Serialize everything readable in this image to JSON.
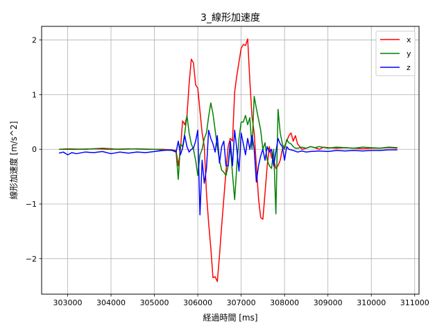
{
  "chart_data": {
    "type": "line",
    "title": "3_線形加速度",
    "xlabel": "経過時間 [ms]",
    "ylabel": "線形加速度 [m/s^2]",
    "xlim": [
      302400,
      311100
    ],
    "ylim": [
      -2.65,
      2.25
    ],
    "xticks": [
      303000,
      304000,
      305000,
      306000,
      307000,
      308000,
      309000,
      310000,
      311000
    ],
    "yticks": [
      -2,
      -1,
      0,
      1,
      2
    ],
    "grid": true,
    "legend": "top-right",
    "series": [
      {
        "name": "x",
        "color": "#ff0000",
        "points": [
          [
            302800,
            0.0
          ],
          [
            303200,
            0.0
          ],
          [
            303600,
            0.01
          ],
          [
            304000,
            0.0
          ],
          [
            304400,
            0.01
          ],
          [
            304800,
            0.0
          ],
          [
            305200,
            0.0
          ],
          [
            305500,
            -0.02
          ],
          [
            305550,
            -0.3
          ],
          [
            305600,
            0.0
          ],
          [
            305650,
            0.52
          ],
          [
            305700,
            0.45
          ],
          [
            305750,
            0.6
          ],
          [
            305800,
            1.2
          ],
          [
            305850,
            1.65
          ],
          [
            305900,
            1.58
          ],
          [
            305950,
            1.18
          ],
          [
            306000,
            1.12
          ],
          [
            306050,
            0.7
          ],
          [
            306100,
            0.3
          ],
          [
            306150,
            0.05
          ],
          [
            306200,
            -0.8
          ],
          [
            306250,
            -1.35
          ],
          [
            306300,
            -1.8
          ],
          [
            306350,
            -2.35
          ],
          [
            306400,
            -2.33
          ],
          [
            306450,
            -2.42
          ],
          [
            306500,
            -1.95
          ],
          [
            306550,
            -1.4
          ],
          [
            306600,
            -0.9
          ],
          [
            306650,
            -0.4
          ],
          [
            306700,
            0.05
          ],
          [
            306750,
            0.2
          ],
          [
            306800,
            0.15
          ],
          [
            306850,
            1.05
          ],
          [
            306900,
            1.35
          ],
          [
            306950,
            1.6
          ],
          [
            307000,
            1.85
          ],
          [
            307050,
            1.92
          ],
          [
            307100,
            1.9
          ],
          [
            307150,
            2.02
          ],
          [
            307200,
            1.25
          ],
          [
            307250,
            0.6
          ],
          [
            307300,
            0.3
          ],
          [
            307350,
            -0.3
          ],
          [
            307400,
            -0.9
          ],
          [
            307450,
            -1.25
          ],
          [
            307500,
            -1.28
          ],
          [
            307550,
            -0.8
          ],
          [
            307600,
            -0.3
          ],
          [
            307650,
            0.05
          ],
          [
            307700,
            -0.15
          ],
          [
            307750,
            -0.2
          ],
          [
            307800,
            -0.35
          ],
          [
            307850,
            -0.3
          ],
          [
            307900,
            -0.2
          ],
          [
            307950,
            0.0
          ],
          [
            308000,
            0.05
          ],
          [
            308050,
            0.15
          ],
          [
            308100,
            0.25
          ],
          [
            308150,
            0.3
          ],
          [
            308200,
            0.15
          ],
          [
            308250,
            0.25
          ],
          [
            308300,
            0.1
          ],
          [
            308350,
            0.05
          ],
          [
            308400,
            0.0
          ],
          [
            308500,
            0.02
          ],
          [
            308600,
            0.05
          ],
          [
            308700,
            0.03
          ],
          [
            308800,
            0.0
          ],
          [
            308900,
            0.04
          ],
          [
            309000,
            0.03
          ],
          [
            309200,
            0.02
          ],
          [
            309400,
            0.03
          ],
          [
            309600,
            0.02
          ],
          [
            309800,
            0.01
          ],
          [
            310000,
            0.02
          ],
          [
            310200,
            0.02
          ],
          [
            310400,
            0.03
          ],
          [
            310600,
            0.02
          ]
        ]
      },
      {
        "name": "y",
        "color": "#008000",
        "points": [
          [
            302800,
            0.0
          ],
          [
            303000,
            0.01
          ],
          [
            303400,
            0.0
          ],
          [
            303800,
            0.02
          ],
          [
            304200,
            0.0
          ],
          [
            304600,
            0.01
          ],
          [
            305000,
            0.0
          ],
          [
            305400,
            -0.02
          ],
          [
            305500,
            -0.05
          ],
          [
            305550,
            -0.55
          ],
          [
            305600,
            0.1
          ],
          [
            305650,
            0.05
          ],
          [
            305700,
            0.3
          ],
          [
            305750,
            0.62
          ],
          [
            305800,
            0.3
          ],
          [
            305850,
            0.1
          ],
          [
            305900,
            0.0
          ],
          [
            305950,
            -0.2
          ],
          [
            306000,
            -0.48
          ],
          [
            306050,
            -0.1
          ],
          [
            306100,
            0.0
          ],
          [
            306150,
            0.2
          ],
          [
            306200,
            0.3
          ],
          [
            306250,
            0.6
          ],
          [
            306300,
            0.85
          ],
          [
            306350,
            0.65
          ],
          [
            306400,
            0.35
          ],
          [
            306450,
            0.05
          ],
          [
            306500,
            -0.2
          ],
          [
            306550,
            -0.38
          ],
          [
            306600,
            -0.42
          ],
          [
            306650,
            -0.48
          ],
          [
            306700,
            -0.3
          ],
          [
            306750,
            0.05
          ],
          [
            306800,
            -0.45
          ],
          [
            306850,
            -0.92
          ],
          [
            306900,
            -0.3
          ],
          [
            306950,
            0.2
          ],
          [
            307000,
            0.5
          ],
          [
            307050,
            0.5
          ],
          [
            307100,
            0.62
          ],
          [
            307150,
            0.45
          ],
          [
            307200,
            0.58
          ],
          [
            307250,
            0.0
          ],
          [
            307300,
            0.97
          ],
          [
            307350,
            0.75
          ],
          [
            307400,
            0.55
          ],
          [
            307450,
            0.35
          ],
          [
            307500,
            0.0
          ],
          [
            307550,
            0.12
          ],
          [
            307600,
            -0.2
          ],
          [
            307650,
            -0.3
          ],
          [
            307700,
            -0.35
          ],
          [
            307750,
            0.0
          ],
          [
            307800,
            -1.18
          ],
          [
            307850,
            0.73
          ],
          [
            307900,
            0.3
          ],
          [
            307950,
            0.1
          ],
          [
            308000,
            0.0
          ],
          [
            308050,
            0.18
          ],
          [
            308100,
            0.12
          ],
          [
            308150,
            0.1
          ],
          [
            308200,
            0.05
          ],
          [
            308250,
            0.02
          ],
          [
            308300,
            0.02
          ],
          [
            308400,
            0.04
          ],
          [
            308500,
            0.02
          ],
          [
            308600,
            0.05
          ],
          [
            308700,
            0.03
          ],
          [
            308800,
            0.05
          ],
          [
            309000,
            0.02
          ],
          [
            309200,
            0.04
          ],
          [
            309400,
            0.03
          ],
          [
            309600,
            0.02
          ],
          [
            309800,
            0.04
          ],
          [
            310000,
            0.03
          ],
          [
            310200,
            0.02
          ],
          [
            310400,
            0.04
          ],
          [
            310600,
            0.03
          ]
        ]
      },
      {
        "name": "z",
        "color": "#0000ff",
        "points": [
          [
            302800,
            -0.07
          ],
          [
            302900,
            -0.05
          ],
          [
            303000,
            -0.1
          ],
          [
            303100,
            -0.06
          ],
          [
            303200,
            -0.08
          ],
          [
            303400,
            -0.05
          ],
          [
            303600,
            -0.06
          ],
          [
            303800,
            -0.04
          ],
          [
            304000,
            -0.08
          ],
          [
            304200,
            -0.05
          ],
          [
            304400,
            -0.07
          ],
          [
            304600,
            -0.05
          ],
          [
            304800,
            -0.06
          ],
          [
            305000,
            -0.04
          ],
          [
            305200,
            -0.02
          ],
          [
            305400,
            -0.01
          ],
          [
            305500,
            -0.05
          ],
          [
            305550,
            0.15
          ],
          [
            305600,
            -0.1
          ],
          [
            305650,
            0.02
          ],
          [
            305700,
            0.25
          ],
          [
            305750,
            0.05
          ],
          [
            305800,
            -0.05
          ],
          [
            305850,
            0.0
          ],
          [
            305900,
            0.02
          ],
          [
            305950,
            0.15
          ],
          [
            306000,
            0.35
          ],
          [
            306050,
            -1.2
          ],
          [
            306100,
            -0.2
          ],
          [
            306150,
            -0.62
          ],
          [
            306200,
            -0.35
          ],
          [
            306250,
            0.35
          ],
          [
            306300,
            0.2
          ],
          [
            306350,
            0.1
          ],
          [
            306400,
            -0.05
          ],
          [
            306450,
            0.25
          ],
          [
            306500,
            -0.25
          ],
          [
            306550,
            0.05
          ],
          [
            306600,
            0.15
          ],
          [
            306650,
            -0.3
          ],
          [
            306700,
            -0.3
          ],
          [
            306750,
            0.15
          ],
          [
            306800,
            -0.3
          ],
          [
            306850,
            0.35
          ],
          [
            306900,
            0.0
          ],
          [
            306950,
            -0.4
          ],
          [
            307000,
            0.3
          ],
          [
            307050,
            0.1
          ],
          [
            307100,
            -0.1
          ],
          [
            307150,
            0.2
          ],
          [
            307200,
            0.0
          ],
          [
            307250,
            0.25
          ],
          [
            307300,
            0.0
          ],
          [
            307350,
            -0.6
          ],
          [
            307400,
            -0.3
          ],
          [
            307450,
            -0.12
          ],
          [
            307500,
            0.0
          ],
          [
            307550,
            -0.2
          ],
          [
            307600,
            0.05
          ],
          [
            307650,
            -0.05
          ],
          [
            307700,
            0.0
          ],
          [
            307750,
            -0.3
          ],
          [
            307800,
            -0.05
          ],
          [
            307850,
            0.2
          ],
          [
            307900,
            0.1
          ],
          [
            307950,
            0.05
          ],
          [
            308000,
            -0.2
          ],
          [
            308050,
            0.05
          ],
          [
            308100,
            0.0
          ],
          [
            308200,
            -0.02
          ],
          [
            308300,
            -0.05
          ],
          [
            308400,
            -0.03
          ],
          [
            308500,
            -0.05
          ],
          [
            308600,
            -0.04
          ],
          [
            308800,
            -0.03
          ],
          [
            309000,
            -0.04
          ],
          [
            309200,
            -0.02
          ],
          [
            309400,
            -0.03
          ],
          [
            309600,
            -0.02
          ],
          [
            309800,
            -0.03
          ],
          [
            310000,
            -0.02
          ],
          [
            310200,
            -0.02
          ],
          [
            310400,
            -0.01
          ],
          [
            310600,
            -0.01
          ]
        ]
      }
    ]
  }
}
